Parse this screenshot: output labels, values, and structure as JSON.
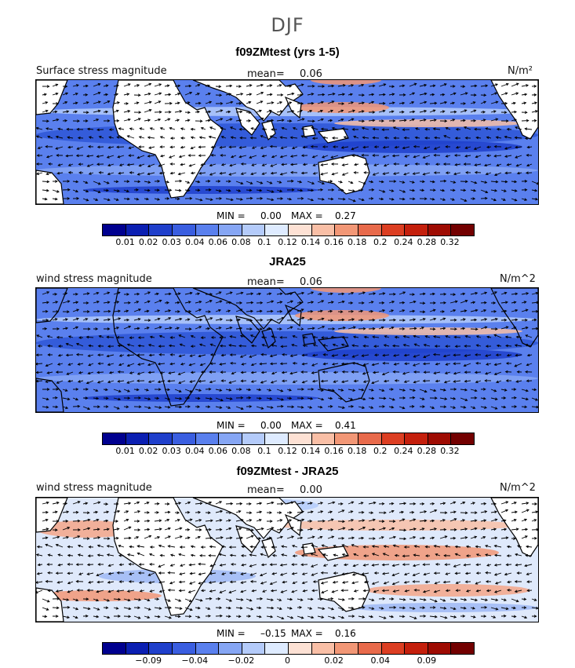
{
  "title": "DJF",
  "panels": [
    {
      "title": "f09ZMtest (yrs 1-5)",
      "label": "Surface stress magnitude",
      "mean_label": "mean=",
      "mean": "0.06",
      "units": "N/m²",
      "min_label": "MIN =",
      "min": "0.00",
      "max_label": "MAX =",
      "max": "0.27"
    },
    {
      "title": "JRA25",
      "label": "wind stress magnitude",
      "mean_label": "mean=",
      "mean": "0.06",
      "units": "N/m^2",
      "min_label": "MIN =",
      "min": "0.00",
      "max_label": "MAX =",
      "max": "0.41"
    },
    {
      "title": "f09ZMtest - JRA25",
      "label": "wind stress magnitude",
      "mean_label": "mean=",
      "mean": "0.00",
      "units": "N/m^2",
      "min_label": "MIN =",
      "min": "–0.15",
      "max_label": "MAX =",
      "max": "0.16"
    }
  ],
  "colorbar_abs": {
    "colors": [
      "#00008f",
      "#0b1fb2",
      "#1f3fcb",
      "#3a5ee0",
      "#5a80ee",
      "#86a6f4",
      "#b4cbfa",
      "#deebff",
      "#fde1d4",
      "#f9bfa6",
      "#f29776",
      "#e86a4b",
      "#dc3e22",
      "#c41f0c",
      "#9e0b02",
      "#730000"
    ],
    "ticks": [
      "0.01",
      "0.02",
      "0.03",
      "0.04",
      "0.06",
      "0.08",
      "0.1",
      "0.12",
      "0.14",
      "0.16",
      "0.18",
      "0.2",
      "0.24",
      "0.28",
      "0.32"
    ]
  },
  "colorbar_diff": {
    "colors": [
      "#00008f",
      "#0b1fb2",
      "#1f3fcb",
      "#3a5ee0",
      "#5a80ee",
      "#86a6f4",
      "#b4cbfa",
      "#deebff",
      "#fde1d4",
      "#f9bfa6",
      "#f29776",
      "#e86a4b",
      "#dc3e22",
      "#c41f0c",
      "#9e0b02",
      "#730000"
    ],
    "ticks": [
      "-0.09",
      "-0.04",
      "-0.02",
      "0",
      "0.02",
      "0.04",
      "0.09"
    ]
  },
  "colors": {
    "ocean_strong": "#2e56d6",
    "ocean_mid": "#5a80ee",
    "ocean_light": "#b4cbfa",
    "warm": "#f29776",
    "land": "#ffffff"
  }
}
